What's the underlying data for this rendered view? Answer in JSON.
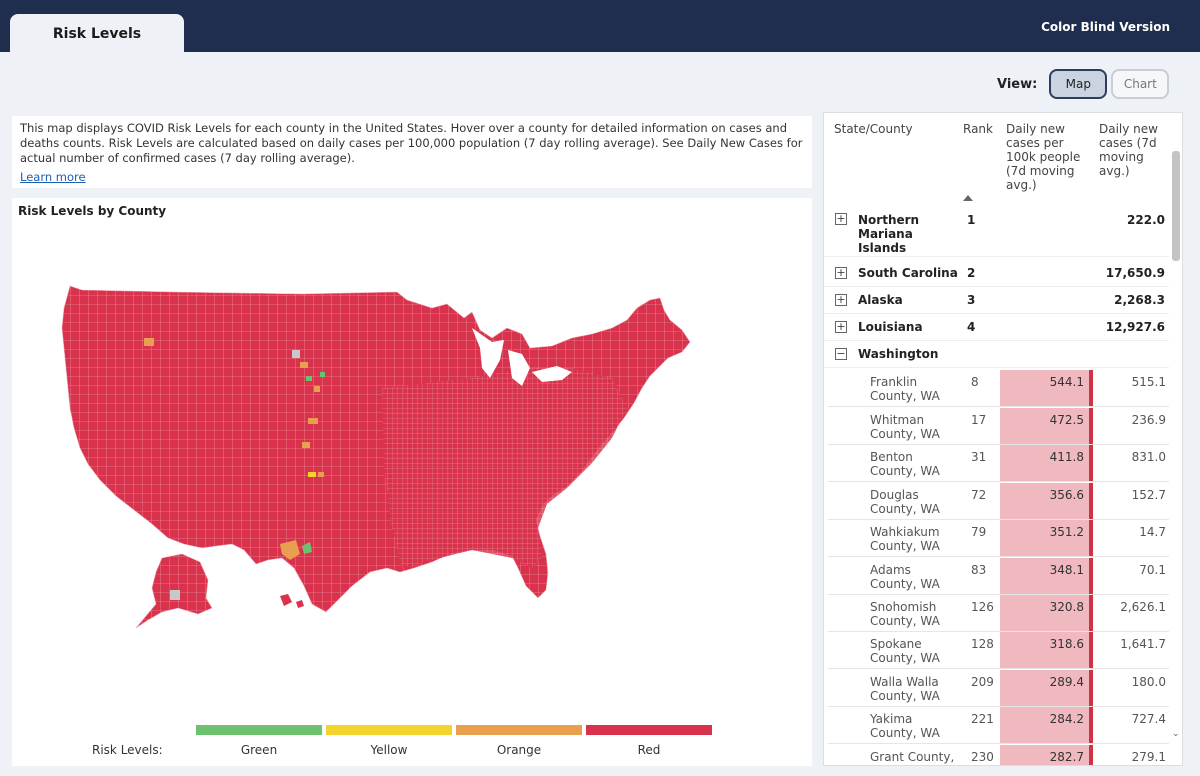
{
  "header": {
    "tab": "Risk Levels",
    "color_blind_link": "Color Blind Version"
  },
  "view": {
    "label": "View:",
    "map": "Map",
    "chart": "Chart"
  },
  "info": {
    "text": "This map displays COVID Risk Levels for each county in the United States. Hover over a county for detailed information on cases and deaths counts. Risk Levels are calculated based on daily cases per 100,000 population (7 day rolling average). See Daily New Cases for actual number of confirmed cases (7 day rolling average).",
    "learn_more": "Learn more"
  },
  "map": {
    "title": "Risk Levels by County",
    "legend_label": "Risk Levels:",
    "legend": [
      {
        "label": "Green",
        "color": "#6cc26f"
      },
      {
        "label": "Yellow",
        "color": "#f2d42c"
      },
      {
        "label": "Orange",
        "color": "#e8a04e"
      },
      {
        "label": "Red",
        "color": "#d8324c"
      }
    ]
  },
  "table": {
    "headers": {
      "state_county": "State/County",
      "rank": "Rank",
      "rate": "Daily new cases per 100k people (7d moving avg.)",
      "cases": "Daily new cases (7d moving avg.)"
    },
    "states": [
      {
        "name": "Northern Mariana Islands",
        "rank": "1",
        "value": "222.0",
        "expander": "+"
      },
      {
        "name": "South Carolina",
        "rank": "2",
        "value": "17,650.9",
        "expander": "+"
      },
      {
        "name": "Alaska",
        "rank": "3",
        "value": "2,268.3",
        "expander": "+"
      },
      {
        "name": "Louisiana",
        "rank": "4",
        "value": "12,927.6",
        "expander": "+"
      },
      {
        "name": "Washington",
        "rank": "",
        "value": "",
        "expander": "−"
      }
    ],
    "counties": [
      {
        "name": "Franklin County, WA",
        "rank": "8",
        "rate": "544.1",
        "cases": "515.1"
      },
      {
        "name": "Whitman County, WA",
        "rank": "17",
        "rate": "472.5",
        "cases": "236.9"
      },
      {
        "name": "Benton County, WA",
        "rank": "31",
        "rate": "411.8",
        "cases": "831.0"
      },
      {
        "name": "Douglas County, WA",
        "rank": "72",
        "rate": "356.6",
        "cases": "152.7"
      },
      {
        "name": "Wahkiakum County, WA",
        "rank": "79",
        "rate": "351.2",
        "cases": "14.7"
      },
      {
        "name": "Adams County, WA",
        "rank": "83",
        "rate": "348.1",
        "cases": "70.1"
      },
      {
        "name": "Snohomish County, WA",
        "rank": "126",
        "rate": "320.8",
        "cases": "2,626.1"
      },
      {
        "name": "Spokane County, WA",
        "rank": "128",
        "rate": "318.6",
        "cases": "1,641.7"
      },
      {
        "name": "Walla Walla County, WA",
        "rank": "209",
        "rate": "289.4",
        "cases": "180.0"
      },
      {
        "name": "Yakima County, WA",
        "rank": "221",
        "rate": "284.2",
        "cases": "727.4"
      },
      {
        "name": "Grant County, WA",
        "rank": "230",
        "rate": "282.7",
        "cases": "279.1"
      }
    ]
  }
}
